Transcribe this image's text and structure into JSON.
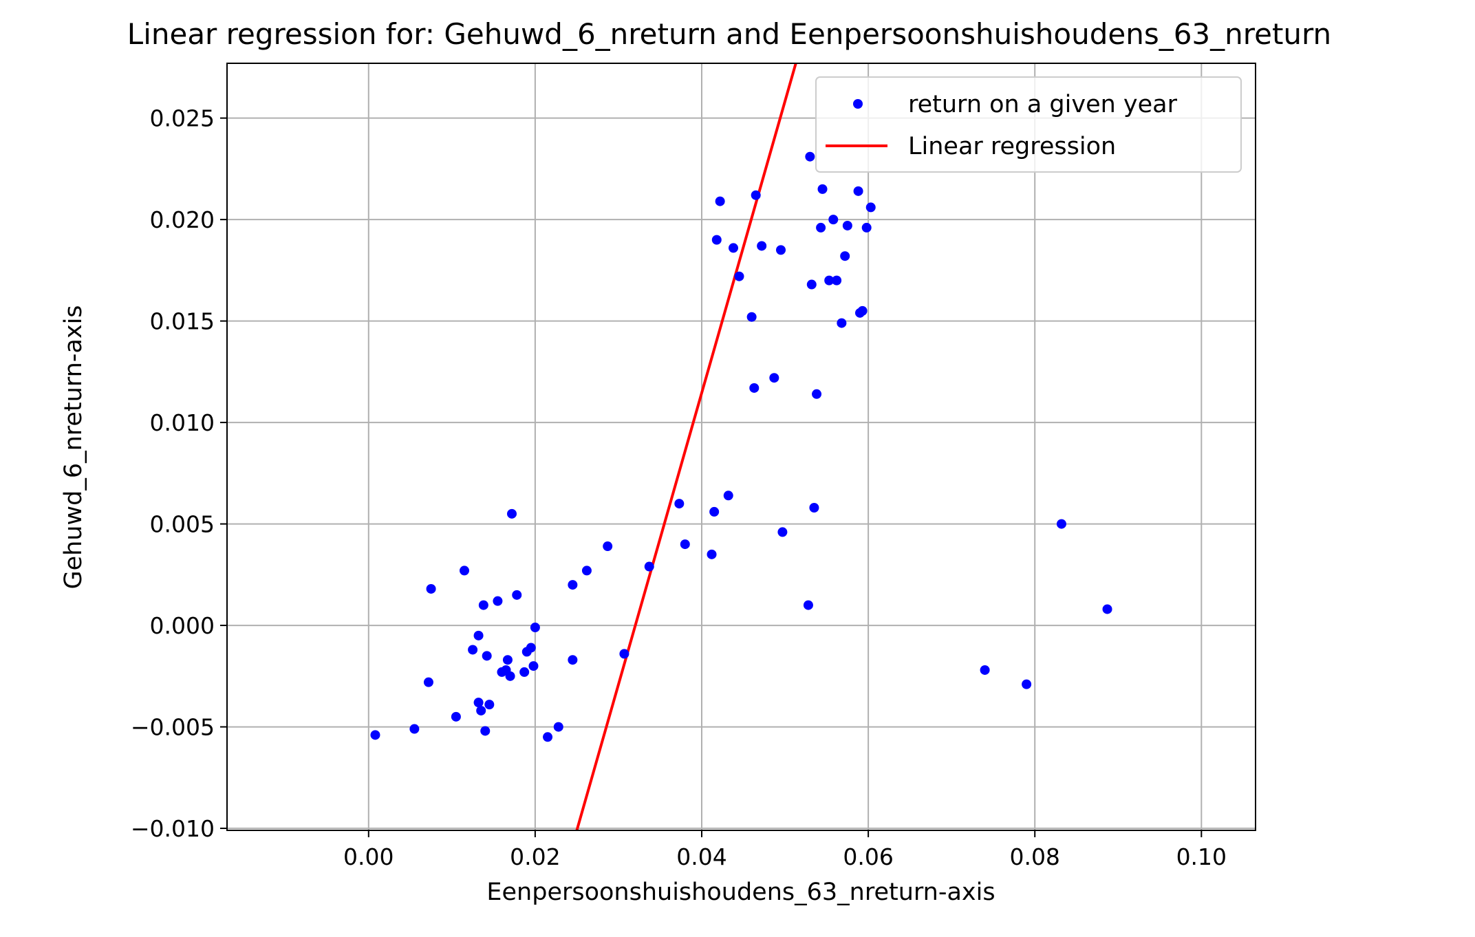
{
  "chart_data": {
    "type": "scatter",
    "title": "Linear regression for: Gehuwd_6_nreturn and Eenpersoonshuishoudens_63_nreturn",
    "xlabel": "Eenpersoonshuishoudens_63_nreturn-axis",
    "ylabel": "Gehuwd_6_nreturn-axis",
    "xlim": [
      -0.017,
      0.1065
    ],
    "ylim": [
      -0.0101,
      0.0277
    ],
    "xticks": [
      0.0,
      0.02,
      0.04,
      0.06,
      0.08,
      0.1
    ],
    "xtick_labels": [
      "0.00",
      "0.02",
      "0.04",
      "0.06",
      "0.08",
      "0.10"
    ],
    "yticks": [
      -0.01,
      -0.005,
      0.0,
      0.005,
      0.01,
      0.015,
      0.02,
      0.025
    ],
    "ytick_labels": [
      "−0.010",
      "−0.005",
      "0.000",
      "0.005",
      "0.010",
      "0.015",
      "0.020",
      "0.025"
    ],
    "grid": true,
    "legend_position": "top-right",
    "colors": {
      "points": "#0000ff",
      "regression": "#ff0000",
      "grid": "#b0b0b0"
    },
    "series": [
      {
        "name": "return on a given year",
        "kind": "scatter",
        "points": [
          [
            0.0008,
            -0.0054
          ],
          [
            0.0055,
            -0.0051
          ],
          [
            0.0072,
            -0.0028
          ],
          [
            0.0075,
            0.0018
          ],
          [
            0.0105,
            -0.0045
          ],
          [
            0.0115,
            0.0027
          ],
          [
            0.0125,
            -0.0012
          ],
          [
            0.0132,
            -0.0005
          ],
          [
            0.0132,
            -0.0038
          ],
          [
            0.0135,
            -0.0042
          ],
          [
            0.0138,
            0.001
          ],
          [
            0.014,
            -0.0052
          ],
          [
            0.0142,
            -0.0015
          ],
          [
            0.0145,
            -0.0039
          ],
          [
            0.0155,
            0.0012
          ],
          [
            0.016,
            -0.0023
          ],
          [
            0.0165,
            -0.0022
          ],
          [
            0.0167,
            -0.0017
          ],
          [
            0.017,
            -0.0025
          ],
          [
            0.0172,
            0.0055
          ],
          [
            0.0178,
            0.0015
          ],
          [
            0.0187,
            -0.0023
          ],
          [
            0.019,
            -0.0013
          ],
          [
            0.0195,
            -0.0011
          ],
          [
            0.0198,
            -0.002
          ],
          [
            0.02,
            -0.0001
          ],
          [
            0.0215,
            -0.0055
          ],
          [
            0.0228,
            -0.005
          ],
          [
            0.0245,
            0.002
          ],
          [
            0.0245,
            -0.0017
          ],
          [
            0.0262,
            0.0027
          ],
          [
            0.0287,
            0.0039
          ],
          [
            0.0307,
            -0.0014
          ],
          [
            0.0337,
            0.0029
          ],
          [
            0.0373,
            0.006
          ],
          [
            0.038,
            0.004
          ],
          [
            0.0412,
            0.0035
          ],
          [
            0.0415,
            0.0056
          ],
          [
            0.0418,
            0.019
          ],
          [
            0.0422,
            0.0209
          ],
          [
            0.0432,
            0.0064
          ],
          [
            0.0438,
            0.0186
          ],
          [
            0.0445,
            0.0172
          ],
          [
            0.046,
            0.0152
          ],
          [
            0.0463,
            0.0117
          ],
          [
            0.0465,
            0.0212
          ],
          [
            0.0472,
            0.0187
          ],
          [
            0.0487,
            0.0122
          ],
          [
            0.0495,
            0.0185
          ],
          [
            0.0497,
            0.0046
          ],
          [
            0.0528,
            0.001
          ],
          [
            0.053,
            0.0231
          ],
          [
            0.0532,
            0.0168
          ],
          [
            0.0535,
            0.0058
          ],
          [
            0.0538,
            0.0114
          ],
          [
            0.0543,
            0.0196
          ],
          [
            0.0545,
            0.0215
          ],
          [
            0.0553,
            0.017
          ],
          [
            0.0558,
            0.02
          ],
          [
            0.0562,
            0.017
          ],
          [
            0.0568,
            0.0149
          ],
          [
            0.0572,
            0.0182
          ],
          [
            0.0575,
            0.0197
          ],
          [
            0.0588,
            0.0214
          ],
          [
            0.059,
            0.0154
          ],
          [
            0.0593,
            0.0155
          ],
          [
            0.0598,
            0.0196
          ],
          [
            0.0603,
            0.0206
          ],
          [
            0.074,
            -0.0022
          ],
          [
            0.079,
            -0.0029
          ],
          [
            0.0832,
            0.005
          ],
          [
            0.0887,
            0.0008
          ]
        ]
      },
      {
        "name": "Linear regression",
        "kind": "line",
        "points": [
          [
            0.025,
            -0.0101
          ],
          [
            0.0513,
            0.0277
          ]
        ]
      }
    ]
  }
}
